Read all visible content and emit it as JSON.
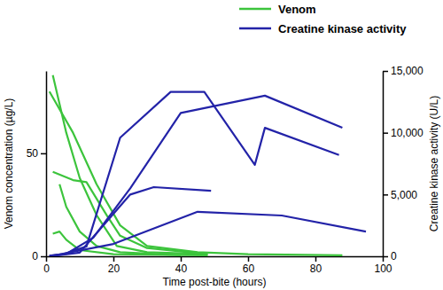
{
  "chart_data": {
    "type": "line",
    "x_label": "Time post-bite (hours)",
    "y_label": "Venom concentration (µg/L)",
    "y2_label": "Creatine kinase activity (U/L)",
    "xlim": [
      0,
      100
    ],
    "xticks": [
      0,
      20,
      40,
      60,
      80,
      100
    ],
    "ylim": [
      0,
      90
    ],
    "yticks": [
      0,
      50
    ],
    "y2lim": [
      0,
      15000
    ],
    "y2ticks": [
      0,
      {
        "value": 5000,
        "label": "5,000"
      },
      {
        "value": 10000,
        "label": "10,000"
      },
      {
        "value": 15000,
        "label": "15,000"
      }
    ],
    "grid": false,
    "legend": "top right",
    "series": [
      {
        "name": "Venom",
        "color": "#3cc43c",
        "x": [
          2,
          6,
          10,
          15,
          21,
          30,
          48
        ],
        "values": [
          88,
          60,
          38,
          20,
          5,
          2,
          1
        ]
      },
      {
        "name": "Venom",
        "color": "#3cc43c",
        "x": [
          1,
          8,
          15,
          22,
          30,
          45,
          60,
          88
        ],
        "values": [
          80,
          60,
          35,
          15,
          5,
          2,
          1,
          0.5
        ]
      },
      {
        "name": "Venom",
        "color": "#3cc43c",
        "x": [
          2,
          8,
          12,
          18,
          22,
          30,
          48
        ],
        "values": [
          41,
          37,
          36,
          20,
          10,
          4,
          1
        ]
      },
      {
        "name": "Venom",
        "color": "#3cc43c",
        "x": [
          4,
          6,
          10,
          15,
          22,
          40
        ],
        "values": [
          35,
          24,
          12,
          5,
          2,
          0.5
        ]
      },
      {
        "name": "Venom",
        "color": "#3cc43c",
        "x": [
          2,
          4,
          6,
          10,
          20,
          48
        ],
        "values": [
          11,
          12,
          8,
          3,
          1,
          0.5
        ]
      },
      {
        "name": "Creatine kinase activity",
        "color": "#2323a8",
        "axis": "y2",
        "x": [
          1,
          5,
          12,
          22,
          37,
          47,
          62,
          65,
          87
        ],
        "values": [
          50,
          150,
          800,
          9600,
          13300,
          13300,
          7400,
          10400,
          8200
        ]
      },
      {
        "name": "Creatine kinase activity",
        "color": "#2323a8",
        "axis": "y2",
        "x": [
          1,
          6,
          14,
          25,
          40,
          65,
          88
        ],
        "values": [
          50,
          200,
          1500,
          5500,
          11600,
          13000,
          10400
        ]
      },
      {
        "name": "Creatine kinase activity",
        "color": "#2323a8",
        "axis": "y2",
        "x": [
          1,
          10,
          25,
          32,
          49
        ],
        "values": [
          0,
          300,
          5000,
          5600,
          5300
        ]
      },
      {
        "name": "Creatine kinase activity",
        "color": "#2323a8",
        "axis": "y2",
        "x": [
          1,
          20,
          45,
          70,
          95
        ],
        "values": [
          0,
          1000,
          3600,
          3300,
          2000
        ]
      }
    ]
  }
}
